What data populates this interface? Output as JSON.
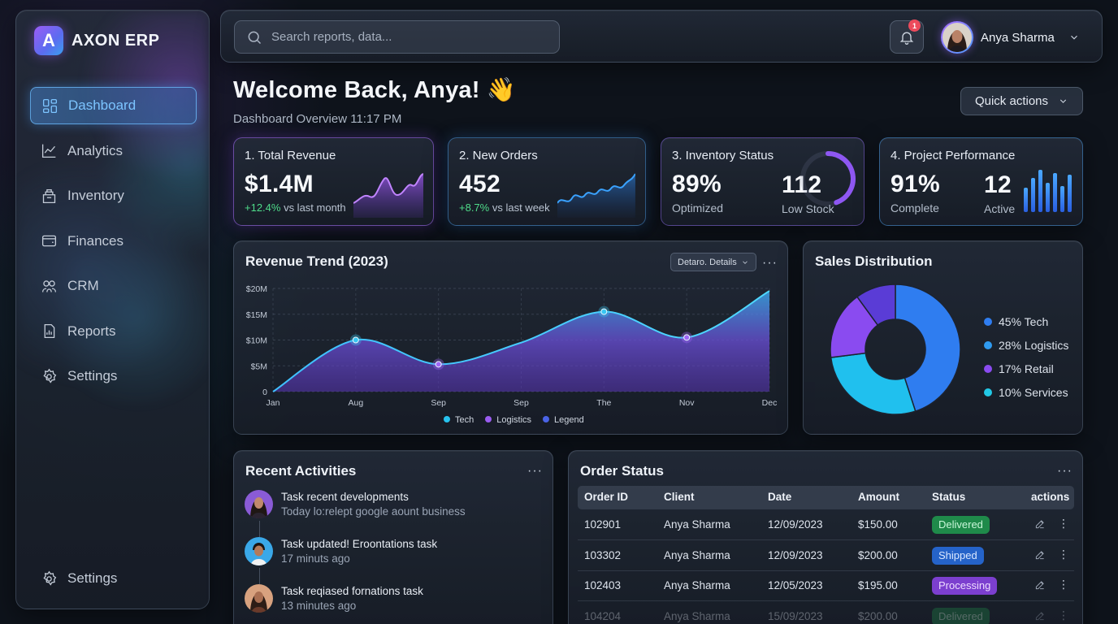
{
  "brand": {
    "name": "AXON ERP",
    "logo_letter": "A"
  },
  "sidebar": {
    "items": [
      {
        "label": "Dashboard",
        "icon": "dashboard-icon",
        "active": true
      },
      {
        "label": "Analytics",
        "icon": "chart-line-icon"
      },
      {
        "label": "Inventory",
        "icon": "inventory-icon"
      },
      {
        "label": "Finances",
        "icon": "wallet-icon"
      },
      {
        "label": "CRM",
        "icon": "users-icon"
      },
      {
        "label": "Reports",
        "icon": "report-icon"
      },
      {
        "label": "Settings",
        "icon": "gear-icon"
      }
    ],
    "bottom": {
      "label": "Settings",
      "icon": "gear-icon"
    }
  },
  "topbar": {
    "search_placeholder": "Search reports, data...",
    "notification_count": "1",
    "user_name": "Anya Sharma"
  },
  "welcome": {
    "title": "Welcome Back, Anya! 👋",
    "subtitle": "Dashboard Overview 11:17 PM",
    "quick_actions": "Quick actions"
  },
  "kpis": {
    "revenue": {
      "label": "1. Total Revenue",
      "value": "$1.4M",
      "delta": "+12.4%",
      "delta_suffix": " vs last month"
    },
    "orders": {
      "label": "2. New Orders",
      "value": "452",
      "delta": "+8.7%",
      "delta_suffix": " vs last week"
    },
    "inventory": {
      "label": "3. Inventory Status",
      "value": "89%",
      "value_caption": "Optimized",
      "value2": "112",
      "value2_caption": "Low Stock",
      "gauge_fraction": 0.72
    },
    "projects": {
      "label": "4. Project Performance",
      "value": "91%",
      "value_caption": "Complete",
      "value2": "12",
      "value2_caption": "Active"
    }
  },
  "revenue_trend": {
    "title": "Revenue Trend (2023)",
    "details_button": "Detaro. Details",
    "more": "···"
  },
  "sales": {
    "title": "Sales Distribution",
    "segments": [
      {
        "label": "45% Tech",
        "value": 45,
        "color": "#2f7df0"
      },
      {
        "label": "28% Logistics",
        "value": 28,
        "color": "#1ec8f0"
      },
      {
        "label": "17% Retail",
        "value": 17,
        "color": "#8a4bf0"
      },
      {
        "label": "10% Services",
        "value": 10,
        "color": "#22c9e6"
      }
    ]
  },
  "activities": {
    "title": "Recent Activities",
    "more": "···",
    "items": [
      {
        "title": "Task recent developments",
        "sub": "Today lo:relept google aount business"
      },
      {
        "title": "Task updated! Eroontations task",
        "sub": "17 minuts ago"
      },
      {
        "title": "Task reqiased fornations task",
        "sub": "13 minutes ago"
      }
    ]
  },
  "orders": {
    "title": "Order Status",
    "more": "···",
    "headers": [
      "Order ID",
      "Client",
      "Date",
      "Amount",
      "Status",
      "actions"
    ],
    "rows": [
      {
        "id": "102901",
        "client": "Anya Sharma",
        "date": "12/09/2023",
        "amount": "$150.00",
        "status": "Delivered",
        "kind": "delivered"
      },
      {
        "id": "103302",
        "client": "Anya Sharma",
        "date": "12/09/2023",
        "amount": "$200.00",
        "status": "Shipped",
        "kind": "shipped"
      },
      {
        "id": "102403",
        "client": "Anya Sharma",
        "date": "12/05/2023",
        "amount": "$195.00",
        "status": "Processing",
        "kind": "processing"
      },
      {
        "id": "104204",
        "client": "Anya Sharma",
        "date": "15/09/2023",
        "amount": "$200.00",
        "status": "Delivered",
        "kind": "delivered"
      }
    ]
  },
  "chart_data": {
    "type": "area",
    "title": "Revenue Trend (2023)",
    "x": [
      "Jan",
      "Aug",
      "Sep",
      "Sep",
      "The",
      "Nov",
      "Dec"
    ],
    "series": [
      {
        "name": "Tech",
        "values": [
          0,
          10,
          5.3,
          9.5,
          15.5,
          10.5,
          19.5
        ]
      }
    ],
    "y_ticks": [
      "0",
      "$5M",
      "$10M",
      "$15M",
      "$20M"
    ],
    "ylim": [
      0,
      20
    ],
    "highlighted_points": [
      1,
      2,
      4,
      5
    ],
    "legend": [
      "Tech",
      "Logistics",
      "Legend"
    ],
    "legend_colors": [
      "#27c2ee",
      "#9a5cf0",
      "#4a63e6"
    ],
    "grid": true,
    "legend_placement": "bottom-center"
  }
}
